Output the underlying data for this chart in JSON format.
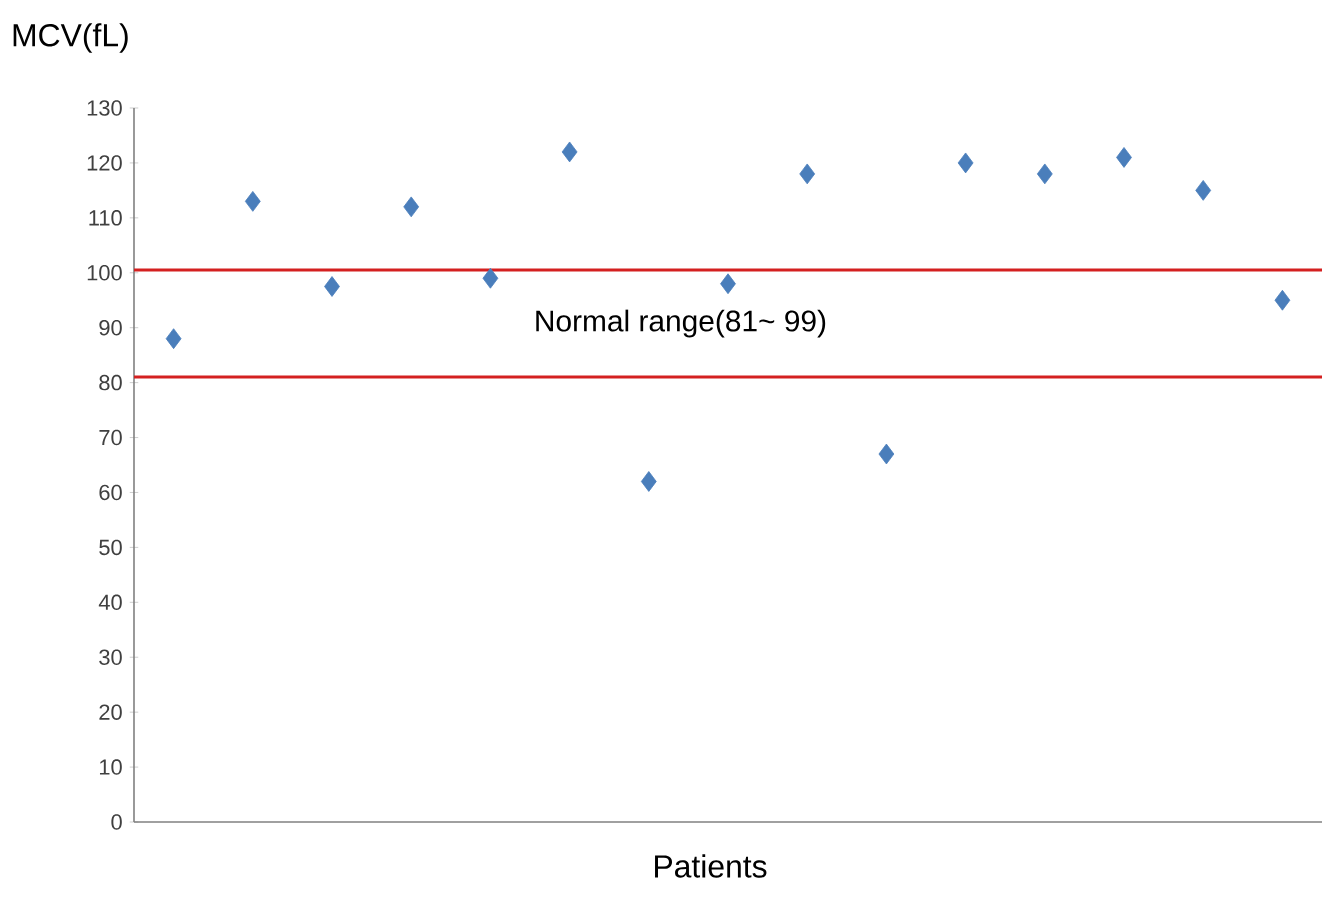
{
  "chart_data": {
    "type": "scatter",
    "categories": [
      null,
      null,
      null,
      null,
      null,
      null,
      null,
      null,
      null,
      null,
      null,
      null,
      null,
      null,
      null
    ],
    "values": [
      88,
      113,
      97.5,
      112,
      99,
      122,
      62,
      98,
      118,
      67,
      120,
      118,
      121,
      115,
      95
    ],
    "color": "#4a7ebb",
    "marker": "diamond",
    "ylabel": "MCV(fL)",
    "xlabel": "Patients",
    "ylim": [
      0,
      130
    ],
    "yticks": [
      0,
      10,
      20,
      30,
      40,
      50,
      60,
      70,
      80,
      90,
      100,
      110,
      120,
      130
    ],
    "grid": false,
    "legend": false,
    "ref_lines": [
      {
        "axis": "y",
        "value": 100.5,
        "color": "#d42020"
      },
      {
        "axis": "y",
        "value": 81,
        "color": "#d42020"
      }
    ],
    "annotations": [
      "Normal range(81~ 99)"
    ]
  }
}
